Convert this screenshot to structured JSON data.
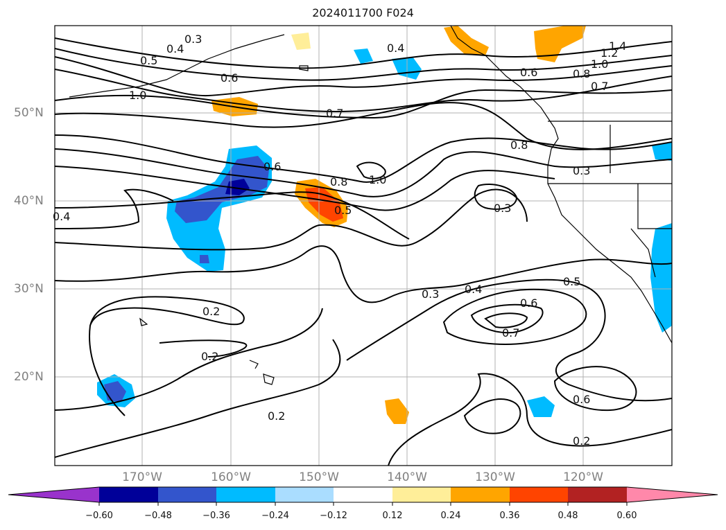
{
  "title": "2024011700 F024",
  "lat_labels": [
    "50°N",
    "40°N",
    "30°N",
    "20°N"
  ],
  "lon_labels": [
    "170°W",
    "160°W",
    "150°W",
    "140°W",
    "130°W",
    "120°W"
  ],
  "colorbar": {
    "ticks": [
      "−0.60",
      "−0.48",
      "−0.36",
      "−0.24",
      "−0.12",
      "0.12",
      "0.24",
      "0.36",
      "0.48",
      "0.60"
    ],
    "colors": [
      "#9933cc",
      "#000099",
      "#3355cc",
      "#00bbff",
      "#aaddff",
      "#ffffff",
      "#ffee99",
      "#ffa500",
      "#ff4400",
      "#b22222",
      "#ff88aa"
    ]
  },
  "contour_labels": [
    "0.3",
    "0.4",
    "0.5",
    "0.6",
    "1.0",
    "0.7",
    "0.4",
    "0.6",
    "0.8",
    "1.0",
    "0.7",
    "1.2",
    "1.4",
    "0.8",
    "0.6",
    "1.0",
    "0.8",
    "0.5",
    "0.3",
    "0.3",
    "0.4",
    "0.3",
    "0.4",
    "0.5",
    "0.6",
    "0.7",
    "0.2",
    "0.2",
    "0.2",
    "0.6",
    "0.2"
  ]
}
